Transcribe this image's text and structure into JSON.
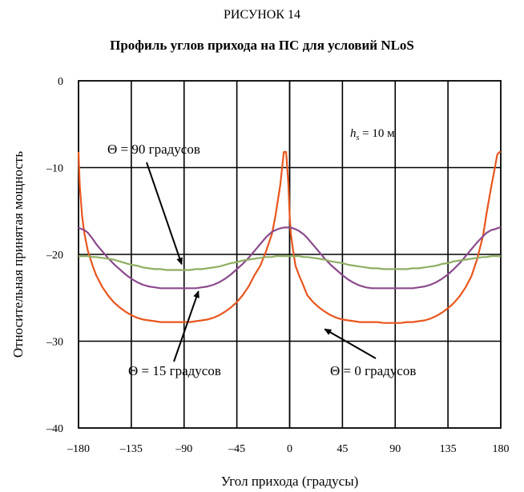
{
  "figure_label": "РИСУНОК 14",
  "chart_data": {
    "type": "line",
    "title": "Профиль углов прихода на ПС для условий NLoS",
    "xlabel": "Угол прихода (градусы)",
    "ylabel": "Относительная принятая мощность",
    "xlim": [
      -180,
      180
    ],
    "ylim": [
      -40,
      0
    ],
    "xticks": [
      -180,
      -135,
      -90,
      -45,
      0,
      45,
      90,
      135,
      180
    ],
    "xtick_labels": [
      "–180",
      "–135",
      "–90",
      "–45",
      "0",
      "45",
      "90",
      "135",
      "180"
    ],
    "yticks": [
      0,
      -10,
      -20,
      -30,
      -40
    ],
    "ytick_labels": [
      "0",
      "–10",
      "–20",
      "–30",
      "–40"
    ],
    "grid": true,
    "x": [
      -180,
      -179,
      -177,
      -175,
      -172,
      -168,
      -165,
      -160,
      -155,
      -150,
      -145,
      -140,
      -135,
      -130,
      -125,
      -120,
      -115,
      -110,
      -105,
      -100,
      -95,
      -90,
      -85,
      -80,
      -75,
      -70,
      -65,
      -60,
      -55,
      -50,
      -45,
      -40,
      -35,
      -30,
      -25,
      -20,
      -15,
      -12,
      -8,
      -5,
      -3,
      -1,
      0,
      1,
      3,
      5,
      8,
      12,
      15,
      20,
      25,
      30,
      35,
      40,
      45,
      50,
      55,
      60,
      65,
      70,
      75,
      80,
      85,
      90,
      95,
      100,
      105,
      110,
      115,
      120,
      125,
      130,
      135,
      140,
      145,
      150,
      155,
      160,
      165,
      168,
      172,
      175,
      177,
      179,
      180
    ],
    "series": [
      {
        "name": "Θ = 0 градусов",
        "color": "#e8561e",
        "values": [
          -8.2,
          -12.0,
          -15.5,
          -17.6,
          -19.6,
          -21.3,
          -22.4,
          -23.7,
          -24.7,
          -25.5,
          -26.1,
          -26.6,
          -27.0,
          -27.3,
          -27.5,
          -27.6,
          -27.7,
          -27.8,
          -27.8,
          -27.8,
          -27.8,
          -27.8,
          -27.8,
          -27.7,
          -27.6,
          -27.5,
          -27.3,
          -27.0,
          -26.6,
          -26.1,
          -25.5,
          -24.7,
          -23.7,
          -22.4,
          -21.3,
          -19.6,
          -17.6,
          -15.5,
          -12.0,
          -8.2,
          -8.2,
          -12.0,
          -15.5,
          -17.6,
          -19.6,
          -21.3,
          -22.4,
          -23.7,
          -24.7,
          -25.5,
          -26.1,
          -26.6,
          -27.0,
          -27.3,
          -27.5,
          -27.6,
          -27.7,
          -27.8,
          -27.8,
          -27.8,
          -27.8,
          -27.9,
          -27.9,
          -27.9,
          -27.9,
          -27.8,
          -27.8,
          -27.7,
          -27.6,
          -27.4,
          -27.1,
          -26.7,
          -26.2,
          -25.6,
          -24.8,
          -23.8,
          -22.5,
          -20.5,
          -17.8,
          -15.2,
          -12.1,
          -10.0,
          -8.5,
          -8.2,
          -8.2
        ]
      },
      {
        "name": "Θ = 15 градусов",
        "color": "#8b4a8c",
        "values": [
          -16.9,
          -17.0,
          -17.1,
          -17.2,
          -17.5,
          -18.2,
          -18.8,
          -19.6,
          -20.4,
          -21.1,
          -21.7,
          -22.3,
          -22.8,
          -23.2,
          -23.5,
          -23.7,
          -23.8,
          -23.9,
          -23.9,
          -23.9,
          -23.9,
          -23.9,
          -23.9,
          -23.9,
          -23.8,
          -23.7,
          -23.5,
          -23.2,
          -22.8,
          -22.3,
          -21.7,
          -21.1,
          -20.4,
          -19.6,
          -18.8,
          -18.0,
          -17.4,
          -17.2,
          -17.0,
          -16.9,
          -16.9,
          -16.9,
          -16.9,
          -16.9,
          -17.0,
          -17.1,
          -17.3,
          -17.7,
          -18.1,
          -18.9,
          -19.7,
          -20.5,
          -21.2,
          -21.8,
          -22.4,
          -22.9,
          -23.3,
          -23.6,
          -23.8,
          -23.9,
          -23.9,
          -23.9,
          -23.9,
          -23.9,
          -23.9,
          -23.9,
          -23.9,
          -23.8,
          -23.7,
          -23.5,
          -23.2,
          -22.8,
          -22.3,
          -21.7,
          -21.0,
          -20.2,
          -19.4,
          -18.6,
          -17.9,
          -17.5,
          -17.2,
          -17.1,
          -17.0,
          -16.9,
          -16.9
        ]
      },
      {
        "name": "Θ = 90 градусов",
        "color": "#8fae62",
        "values": [
          -20.2,
          -20.2,
          -20.2,
          -20.2,
          -20.2,
          -20.3,
          -20.3,
          -20.4,
          -20.5,
          -20.6,
          -20.8,
          -21.0,
          -21.2,
          -21.3,
          -21.5,
          -21.6,
          -21.7,
          -21.7,
          -21.8,
          -21.8,
          -21.8,
          -21.8,
          -21.8,
          -21.7,
          -21.7,
          -21.6,
          -21.5,
          -21.4,
          -21.2,
          -21.0,
          -20.9,
          -20.7,
          -20.6,
          -20.5,
          -20.4,
          -20.3,
          -20.3,
          -20.2,
          -20.2,
          -20.2,
          -20.2,
          -20.2,
          -20.2,
          -20.2,
          -20.2,
          -20.2,
          -20.2,
          -20.3,
          -20.3,
          -20.4,
          -20.5,
          -20.6,
          -20.8,
          -20.9,
          -21.0,
          -21.2,
          -21.3,
          -21.4,
          -21.5,
          -21.6,
          -21.6,
          -21.7,
          -21.7,
          -21.7,
          -21.7,
          -21.7,
          -21.6,
          -21.6,
          -21.5,
          -21.4,
          -21.3,
          -21.1,
          -21.0,
          -20.8,
          -20.7,
          -20.6,
          -20.5,
          -20.4,
          -20.3,
          -20.3,
          -20.2,
          -20.2,
          -20.2,
          -20.2,
          -20.2
        ]
      }
    ],
    "annotations": [
      {
        "text": "Θ = 90  градусов",
        "arrow_to": [
          -90,
          -21.6
        ]
      },
      {
        "text": "Θ = 15  градусов",
        "arrow_to": [
          -75,
          -23.6
        ]
      },
      {
        "text": "Θ = 0 градусов",
        "arrow_to": [
          90,
          -27.5
        ]
      },
      {
        "text_main": "h",
        "text_sub": "s",
        "text_rest": " = 10 м"
      }
    ]
  }
}
